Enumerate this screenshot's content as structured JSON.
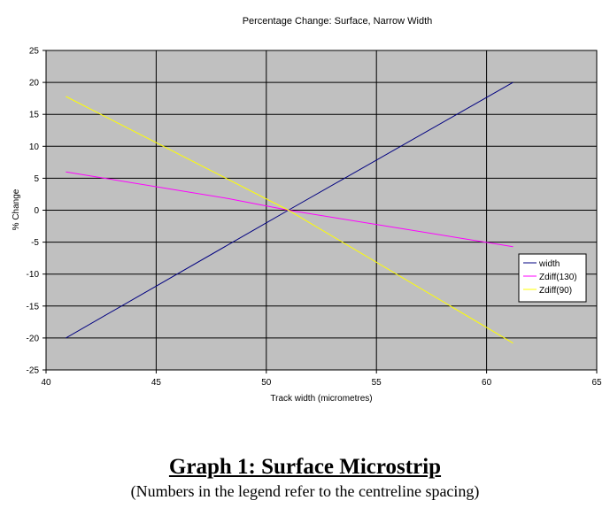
{
  "chart_data": {
    "type": "line",
    "title": "Percentage Change: Surface, Narrow Width",
    "xlabel": "Track width (micrometres)",
    "ylabel": "% Change",
    "xlim": [
      40,
      65
    ],
    "ylim": [
      -25,
      25
    ],
    "x_ticks": [
      "40",
      "45",
      "50",
      "55",
      "60",
      "65"
    ],
    "y_ticks": [
      "25",
      "20",
      "15",
      "10",
      "5",
      "0",
      "-5",
      "-10",
      "-15",
      "-20",
      "-25"
    ],
    "grid": true,
    "legend_position": "right",
    "plot_background": "#c0c0c0",
    "series": [
      {
        "name": "width",
        "color": "#000080",
        "x": [
          40.9,
          51,
          61.2
        ],
        "y": [
          -20,
          0,
          20
        ]
      },
      {
        "name": "Zdiff(130)",
        "color": "#ff00ff",
        "x": [
          40.9,
          48.3,
          51,
          61.2
        ],
        "y": [
          6,
          1.8,
          0,
          -5.7
        ]
      },
      {
        "name": "Zdiff(90)",
        "color": "#ffff00",
        "x": [
          40.9,
          51,
          61.2
        ],
        "y": [
          17.8,
          0,
          -20.8
        ]
      }
    ]
  },
  "caption": {
    "title": "Graph 1: Surface Microstrip",
    "subtitle": "(Numbers in the legend refer to the centreline spacing)"
  }
}
